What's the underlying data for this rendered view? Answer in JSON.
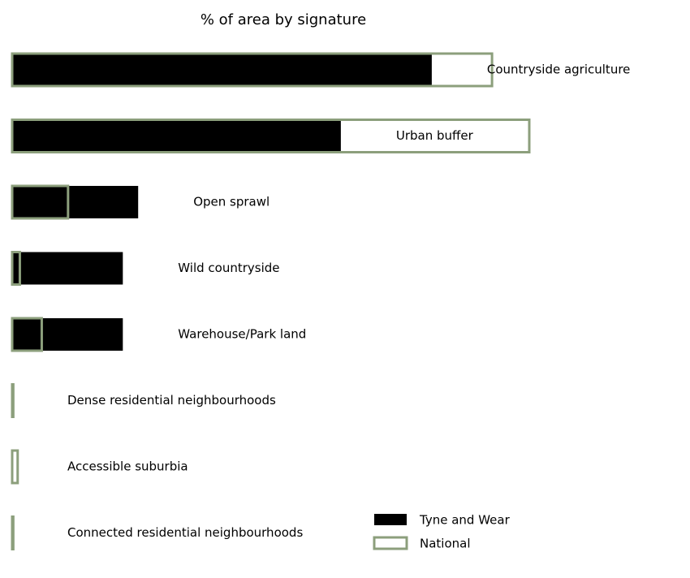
{
  "chart_data": {
    "type": "barh",
    "title": "% of area by signature",
    "categories": [
      "Countryside agriculture",
      "Urban buffer",
      "Open sprawl",
      "Wild countryside",
      "Warehouse/Park land",
      "Dense residential neighbourhoods",
      "Accessible suburbia",
      "Connected residential neighbourhoods"
    ],
    "series": [
      {
        "name": "Tyne and Wear",
        "color": "#000000",
        "values": [
          38.3,
          30.0,
          11.5,
          10.1,
          10.1,
          0,
          0,
          0
        ]
      },
      {
        "name": "National",
        "color": "#8c9f7c",
        "values": [
          43.8,
          47.2,
          5.1,
          0.7,
          2.7,
          0.1,
          0.5,
          0.1
        ]
      }
    ]
  }
}
